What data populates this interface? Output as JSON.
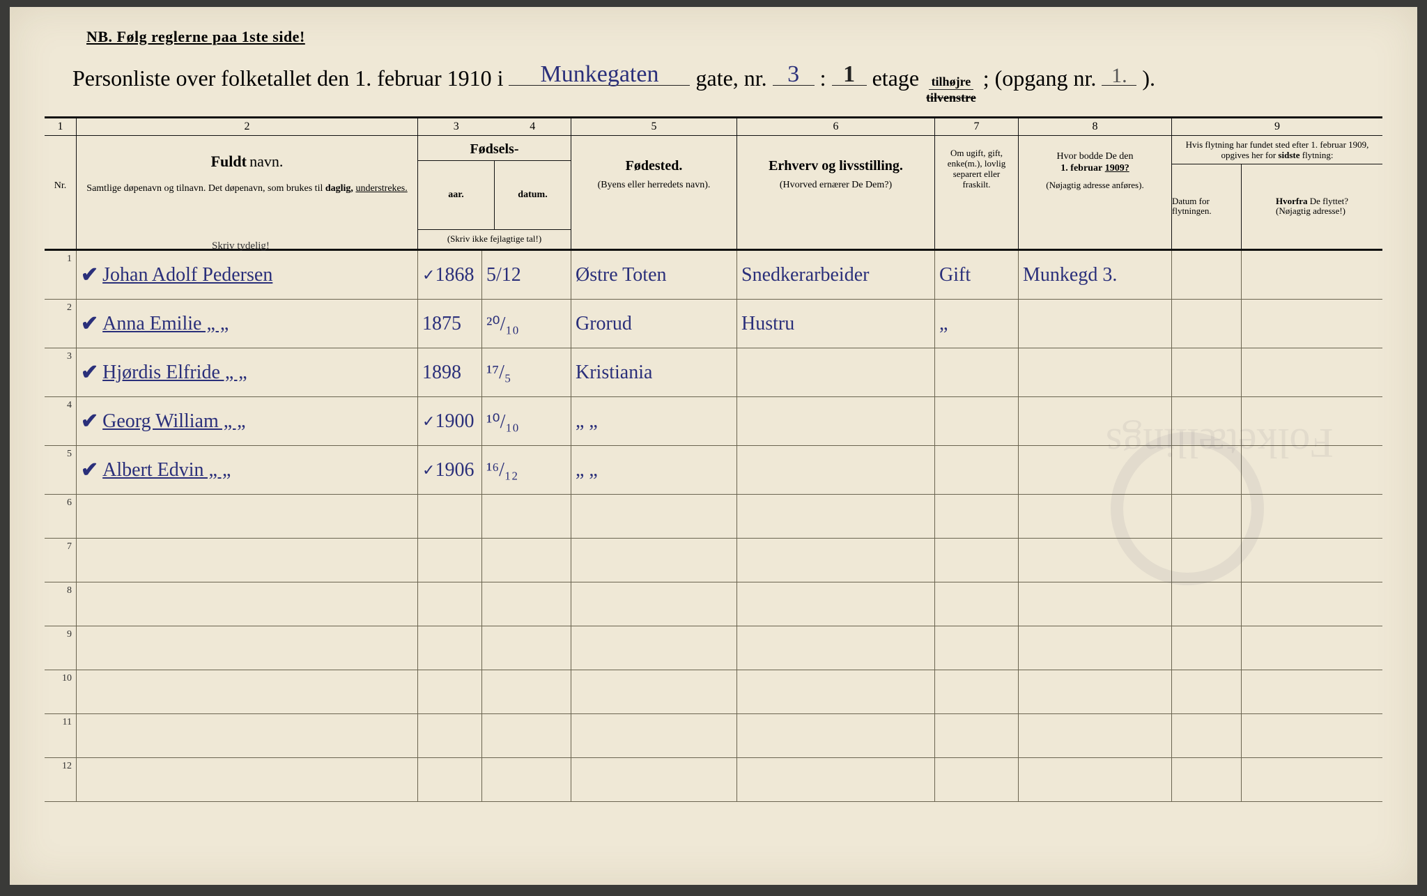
{
  "nb_text": "NB.   Følg reglerne paa 1ste side!",
  "title_pre": "Personliste over folketallet den 1. februar 1910 i",
  "street_hand": "Munkegaten",
  "title_gate": "gate, nr.",
  "house_nr": "3",
  "colon": ":",
  "etage_nr": "1",
  "title_etage": "etage",
  "frac_top": "tilhøjre",
  "frac_bot": "tilvenstre",
  "title_semi": "; (opgang nr.",
  "opgang_nr": "1.",
  "title_end": ").",
  "colnums": [
    "1",
    "2",
    "3",
    "4",
    "5",
    "6",
    "7",
    "8",
    "9"
  ],
  "headers": {
    "nr": "Nr.",
    "name_bold": "Fuldt",
    "name_rest": "navn.",
    "name_sub": "Samtlige døpenavn og tilnavn. Det døpenavn, som brukes til",
    "name_daglig": "daglig,",
    "name_under": "understrekes.",
    "fods": "Fødsels-",
    "aar": "aar.",
    "datum": "datum.",
    "fods_note": "(Skriv ikke fejlagtige tal!)",
    "skriv_tydelig": "Skriv tydelig!",
    "fodested": "Fødested.",
    "fodested_sub": "(Byens eller herredets navn).",
    "erhverv": "Erhverv og livsstilling.",
    "erhverv_sub": "(Hvorved ernærer De Dem?)",
    "marital": "Om ugift, gift, enke(m.), lovlig separert eller fraskilt.",
    "addr1909": "Hvor bodde De den",
    "addr1909_date": "1. februar",
    "addr1909_year": "1909?",
    "addr1909_sub": "(Nøjagtig adresse anføres).",
    "col9_top": "Hvis flytning har fundet sted efter 1. februar 1909, opgives her for",
    "col9_sidste": "sidste",
    "col9_flytning": "flytning:",
    "datum_flyt": "Datum for flytningen.",
    "hvorfra": "Hvorfra",
    "hvorfra_rest": "De flyttet?",
    "hvorfra_sub": "(Nøjagtig adresse!)"
  },
  "rows": [
    {
      "nr": "1",
      "check": "✔",
      "name": "Johan Adolf Pedersen",
      "tick": "✓",
      "year": "1868",
      "date": "5/12",
      "pob": "Østre Toten",
      "occ": "Snedkerarbeider",
      "mar": "Gift",
      "addr": "Munkegd 3."
    },
    {
      "nr": "2",
      "check": "✔",
      "name": "Anna Emilie        „      „",
      "tick": "",
      "year": "1875",
      "date": "²⁰/₁₀",
      "pob": "Grorud",
      "occ": "Hustru",
      "mar": "„",
      "addr": ""
    },
    {
      "nr": "3",
      "check": "✔",
      "name": "Hjørdis Elfride    „      „",
      "tick": "",
      "year": "1898",
      "date": "¹⁷/₅",
      "pob": "Kristiania",
      "occ": "",
      "mar": "",
      "addr": ""
    },
    {
      "nr": "4",
      "check": "✔",
      "name": "Georg William    „      „",
      "tick": "✓",
      "year": "1900",
      "date": "¹⁰/₁₀",
      "pob": "„        „",
      "occ": "",
      "mar": "",
      "addr": ""
    },
    {
      "nr": "5",
      "check": "✔",
      "name": "Albert Edvin      „      „",
      "tick": "✓",
      "year": "1906",
      "date": "¹⁶/₁₂",
      "pob": "„        „",
      "occ": "",
      "mar": "",
      "addr": ""
    },
    {
      "nr": "6"
    },
    {
      "nr": "7"
    },
    {
      "nr": "8"
    },
    {
      "nr": "9"
    },
    {
      "nr": "10"
    },
    {
      "nr": "11"
    },
    {
      "nr": "12"
    }
  ],
  "colors": {
    "paper": "#efe8d6",
    "ink_print": "#1a1a1a",
    "ink_hand": "#2a2f7a",
    "rule_faint": "#6a6450"
  }
}
